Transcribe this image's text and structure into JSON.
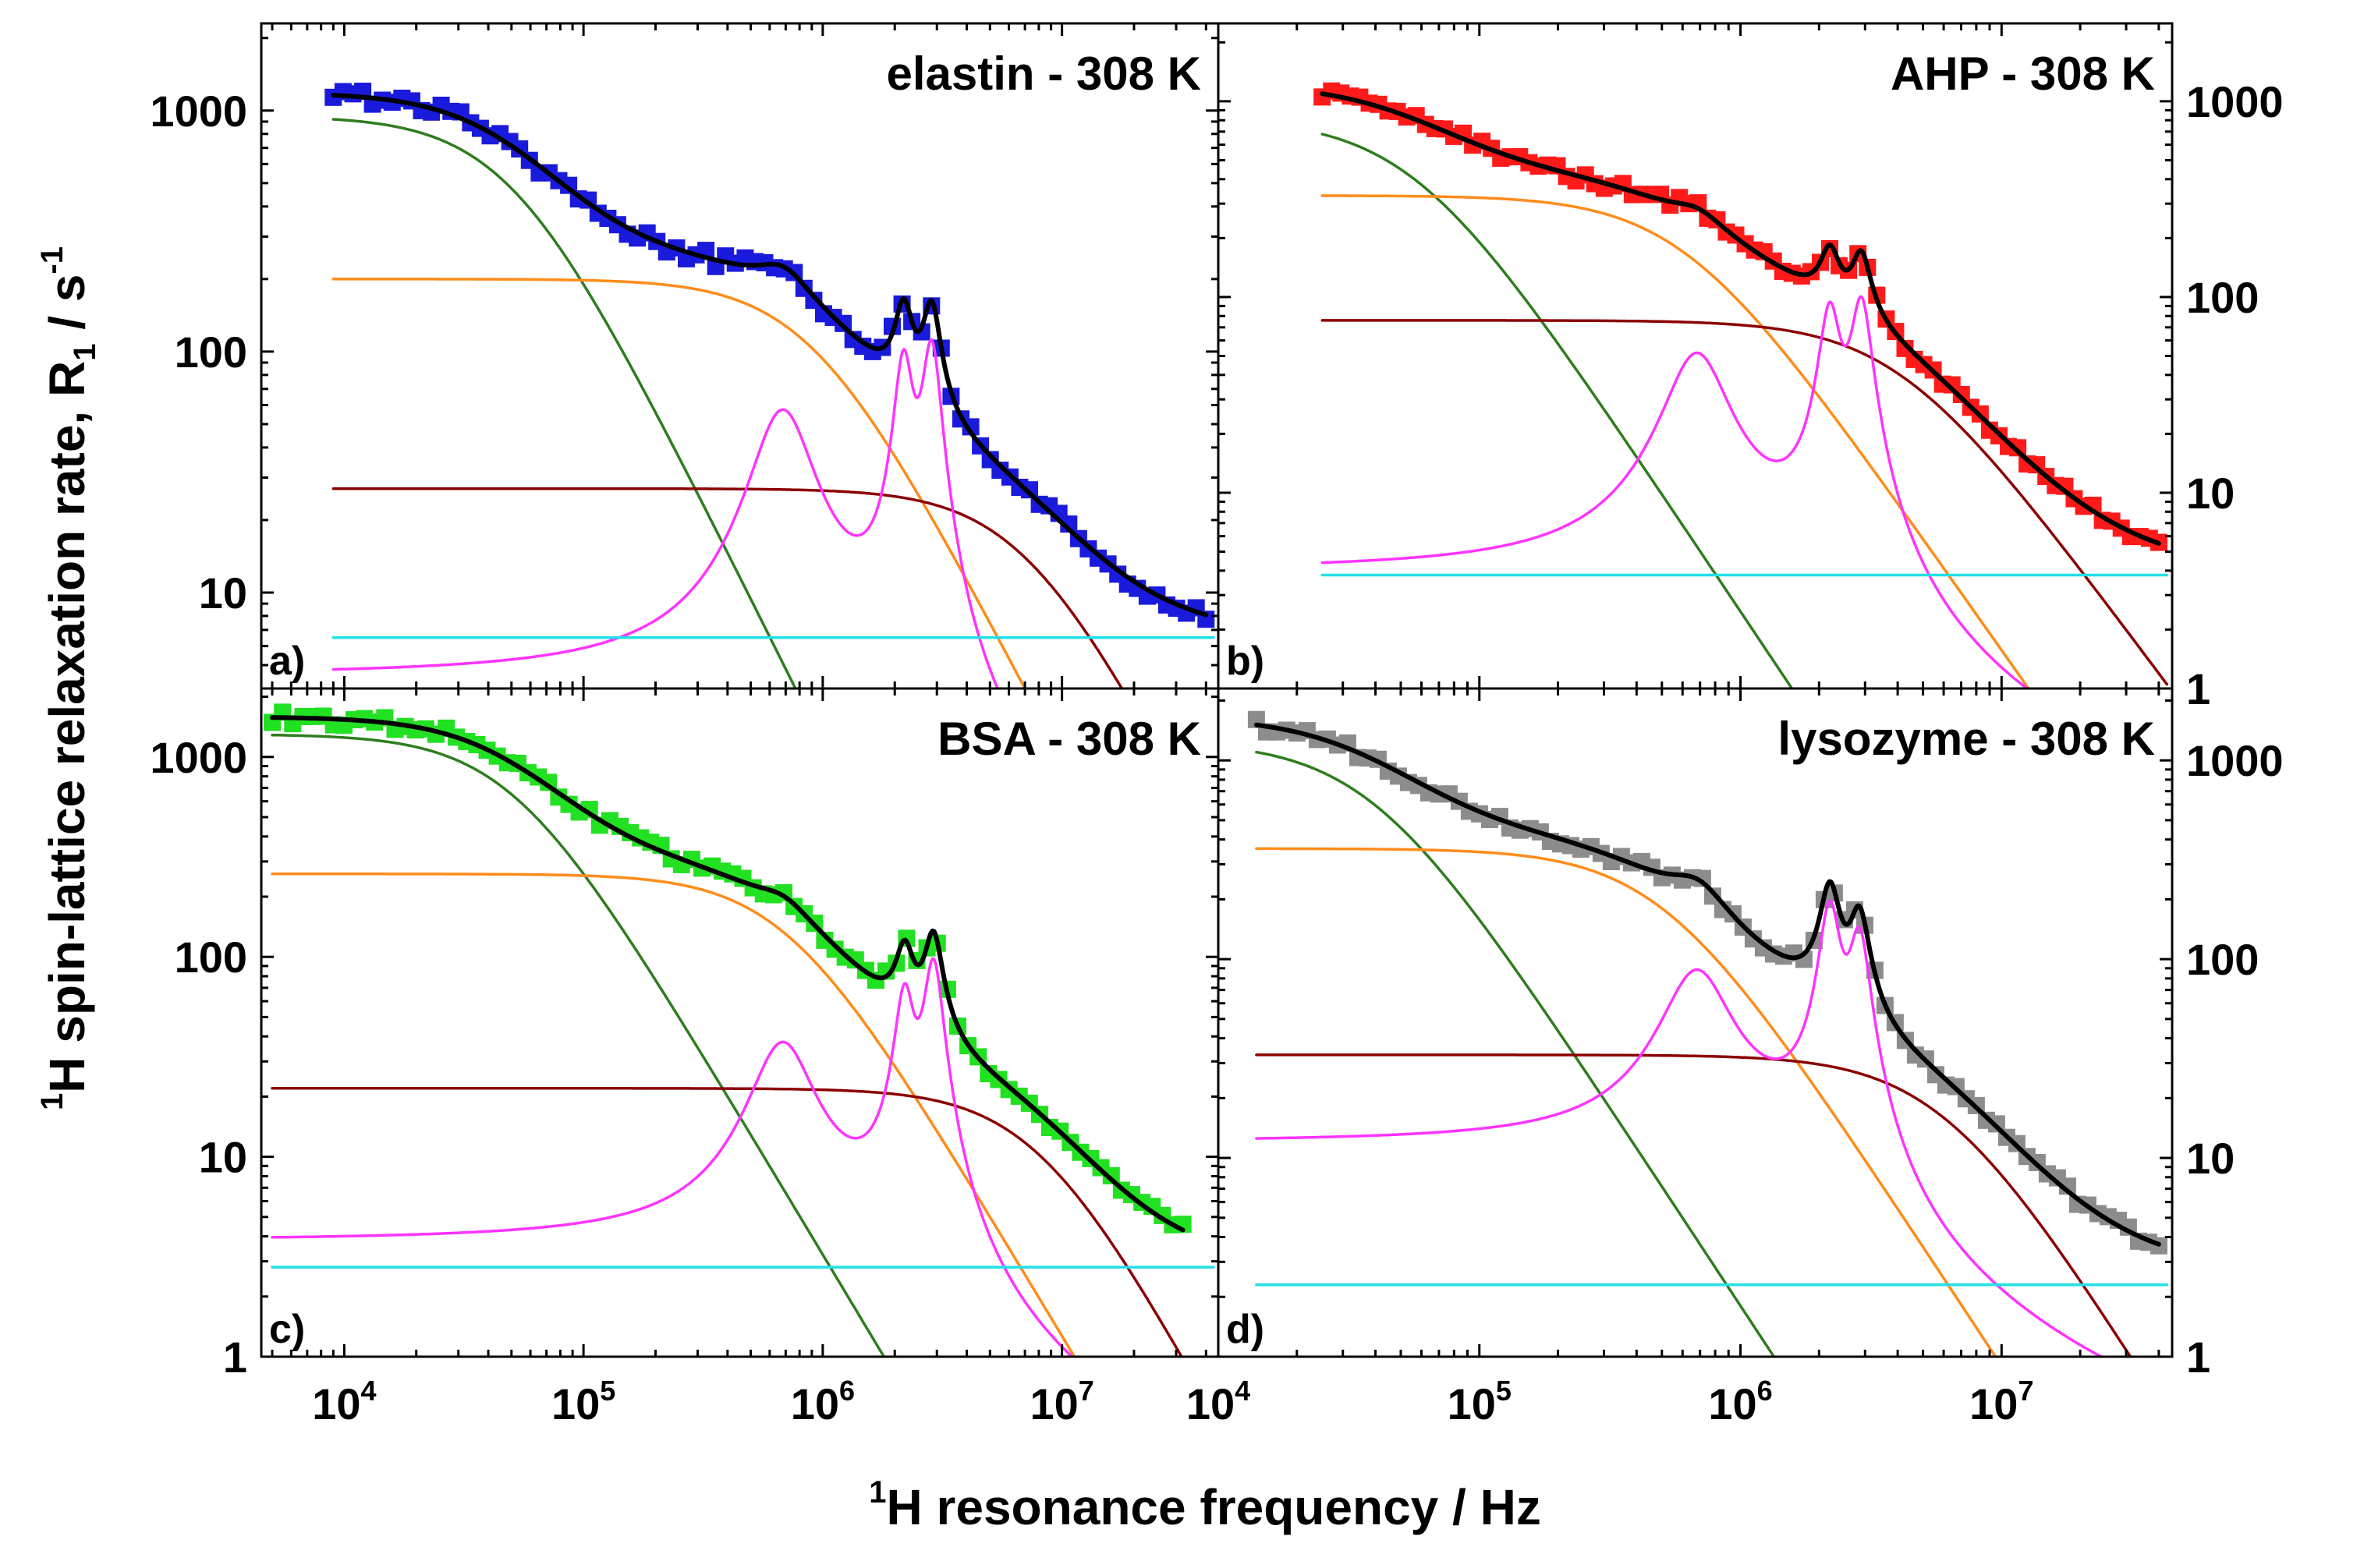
{
  "chart_data": {
    "type": "scatter",
    "x_label": {
      "pre": "1",
      "main": "H resonance frequency / Hz"
    },
    "y_label": {
      "pre": "1",
      "main1": "H spin-lattice relaxation rate, R",
      "sub": "1",
      "main2": " / s",
      "sup": "-1"
    },
    "xscale": "log",
    "yscale": "log",
    "x_tick_base": "10",
    "y_tick_labels": {
      "1": "1",
      "10": "10",
      "100": "100",
      "1000": "1000"
    },
    "component_colors": {
      "data_marker": "varies",
      "total_fit": "#000000",
      "green": "#2e7d1f",
      "orange": "#ff8c1a",
      "darkred": "#8b0000",
      "magenta": "#ff33ff",
      "cyan": "#22e0e8"
    },
    "panels": [
      {
        "id": "a",
        "letter": "a)",
        "title": "elastin - 308 K",
        "marker_color": "#1a1adc",
        "xlim": [
          4500,
          45000000
        ],
        "ylim": [
          4,
          2300
        ],
        "x_ticks": [
          4,
          5,
          6,
          7
        ],
        "y_ticks": [
          10,
          100,
          1000
        ],
        "y_axis_side": "left",
        "show_x_labels": false,
        "components": {
          "green": {
            "A": 950,
            "nu_c": 50000,
            "slope": 1.0
          },
          "orange": {
            "A": 200,
            "nu_c": 900000,
            "slope": 0.95
          },
          "darkred": {
            "A": 27,
            "nu_c": 7000000,
            "slope": 0.95
          },
          "cyan": {
            "value": 6.5
          },
          "magenta": {
            "base": 4.5,
            "peaks": [
              {
                "f": 680000,
                "h": 52,
                "w": 0.13
              },
              {
                "f": 2180000,
                "h": 85,
                "w": 0.04
              },
              {
                "f": 2850000,
                "h": 100,
                "w": 0.04
              }
            ]
          }
        },
        "data_range": [
          9000,
          40000000
        ]
      },
      {
        "id": "b",
        "letter": "b)",
        "title": "AHP - 308 K",
        "marker_color": "#ff1a1a",
        "xlim": [
          10000,
          45000000
        ],
        "ylim": [
          1,
          2500
        ],
        "x_ticks": [
          4,
          5,
          6,
          7
        ],
        "y_ticks": [
          1,
          10,
          100,
          1000
        ],
        "y_axis_side": "right",
        "show_x_labels": false,
        "components": {
          "green": {
            "A": 820,
            "nu_c": 55000,
            "slope": 1.0
          },
          "orange": {
            "A": 330,
            "nu_c": 600000,
            "slope": 0.95
          },
          "darkred": {
            "A": 76,
            "nu_c": 4000000,
            "slope": 0.9
          },
          "cyan": {
            "value": 3.8
          },
          "magenta": {
            "base": 4.0,
            "peaks": [
              {
                "f": 680000,
                "h": 47,
                "w": 0.12
              },
              {
                "f": 2200000,
                "h": 80,
                "w": 0.04
              },
              {
                "f": 2900000,
                "h": 90,
                "w": 0.04
              }
            ]
          }
        },
        "data_range": [
          25000,
          40000000
        ]
      },
      {
        "id": "c",
        "letter": "c)",
        "title": "BSA - 308 K",
        "marker_color": "#22e022",
        "xlim": [
          4500,
          45000000
        ],
        "ylim": [
          1,
          2200
        ],
        "x_ticks": [
          4,
          5,
          6,
          7
        ],
        "y_ticks": [
          1,
          10,
          100,
          1000
        ],
        "y_axis_side": "left",
        "show_x_labels": true,
        "components": {
          "green": {
            "A": 1300,
            "nu_c": 50000,
            "slope": 1.0
          },
          "orange": {
            "A": 260,
            "nu_c": 700000,
            "slope": 1.0
          },
          "darkred": {
            "A": 22,
            "nu_c": 8000000,
            "slope": 1.1
          },
          "cyan": {
            "value": 2.8
          },
          "magenta": {
            "base": 3.8,
            "peaks": [
              {
                "f": 680000,
                "h": 33,
                "w": 0.13
              },
              {
                "f": 2200000,
                "h": 60,
                "w": 0.04
              },
              {
                "f": 2900000,
                "h": 90,
                "w": 0.04
              }
            ]
          }
        },
        "data_range": [
          5000,
          32000000
        ]
      },
      {
        "id": "d",
        "letter": "d)",
        "title": "lysozyme - 308 K",
        "marker_color": "#8c8c8c",
        "xlim": [
          10000,
          45000000
        ],
        "ylim": [
          1,
          2300
        ],
        "x_ticks": [
          4,
          5,
          6,
          7
        ],
        "y_ticks": [
          1,
          10,
          100,
          1000
        ],
        "y_axis_side": "right",
        "show_x_labels": true,
        "components": {
          "green": {
            "A": 1250,
            "nu_c": 38000,
            "slope": 1.0
          },
          "orange": {
            "A": 360,
            "nu_c": 500000,
            "slope": 1.0
          },
          "darkred": {
            "A": 33,
            "nu_c": 6000000,
            "slope": 1.05
          },
          "cyan": {
            "value": 2.3
          },
          "magenta": {
            "base": 12,
            "peaks": [
              {
                "f": 680000,
                "h": 75,
                "w": 0.13
              },
              {
                "f": 2200000,
                "h": 170,
                "w": 0.04
              },
              {
                "f": 2850000,
                "h": 120,
                "w": 0.04
              }
            ]
          }
        },
        "data_range": [
          14000,
          40000000
        ]
      }
    ]
  }
}
